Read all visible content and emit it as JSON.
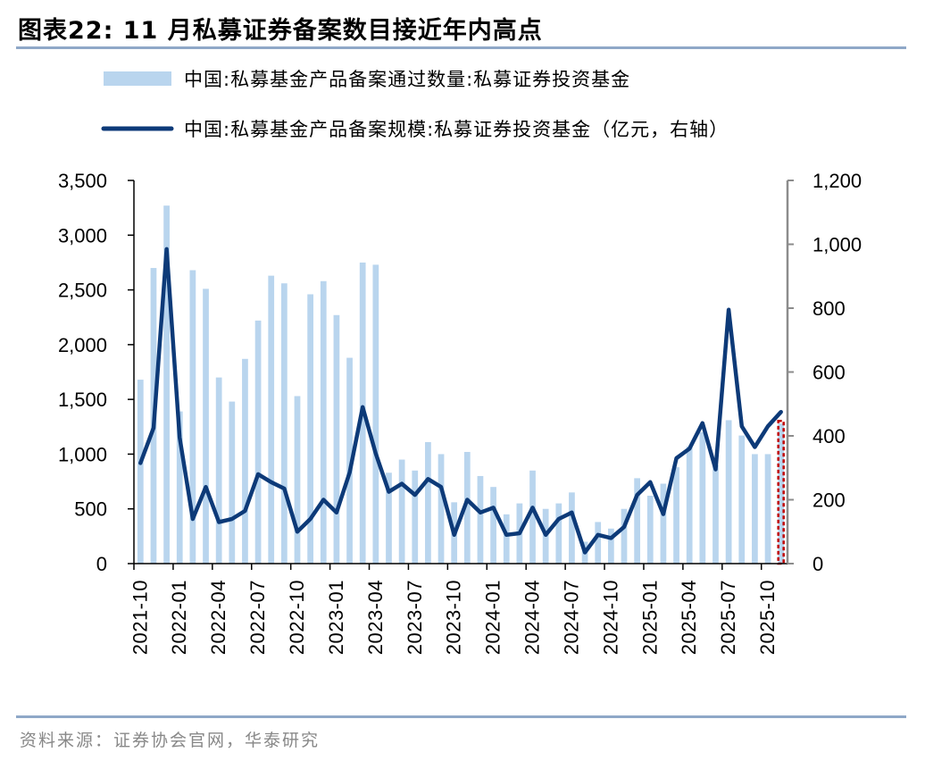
{
  "title": "图表22:  11 月私募证券备案数目接近年内高点",
  "source": "资料来源：证券协会官网，华泰研究",
  "colors": {
    "bar": "#b9d5ee",
    "line": "#0d3a78",
    "axis_right": "#8c8c8c",
    "highlight": "#c00000"
  },
  "chart_data": {
    "type": "bar",
    "title": "",
    "xlabel": "",
    "y_left": {
      "min": 0,
      "max": 3500,
      "ticks": [
        0,
        500,
        1000,
        1500,
        2000,
        2500,
        3000,
        3500
      ]
    },
    "y_right": {
      "min": 0,
      "max": 1200,
      "ticks": [
        0,
        200,
        400,
        600,
        800,
        1000,
        1200
      ]
    },
    "legend_position": "top",
    "x": [
      "2021-10",
      "2021-11",
      "2021-12",
      "2022-01",
      "2022-02",
      "2022-03",
      "2022-04",
      "2022-05",
      "2022-06",
      "2022-07",
      "2022-08",
      "2022-09",
      "2022-10",
      "2022-11",
      "2022-12",
      "2023-01",
      "2023-02",
      "2023-03",
      "2023-04",
      "2023-05",
      "2023-06",
      "2023-07",
      "2023-08",
      "2023-09",
      "2023-10",
      "2023-11",
      "2023-12",
      "2024-01",
      "2024-02",
      "2024-03",
      "2024-04",
      "2024-05",
      "2024-06",
      "2024-07",
      "2024-08",
      "2024-09",
      "2024-10",
      "2024-11",
      "2024-12",
      "2025-01",
      "2025-02",
      "2025-03",
      "2025-04",
      "2025-05",
      "2025-06",
      "2025-07",
      "2025-08",
      "2025-09",
      "2025-10",
      "2025-11"
    ],
    "x_tick_labels": [
      "2021-10",
      "2022-01",
      "2022-04",
      "2022-07",
      "2022-10",
      "2023-01",
      "2023-04",
      "2023-07",
      "2023-10",
      "2024-01",
      "2024-04",
      "2024-07",
      "2024-10",
      "2025-01",
      "2025-04",
      "2025-07",
      "2025-10"
    ],
    "series": [
      {
        "name": "中国:私募基金产品备案通过数量:私募证券投资基金",
        "type": "bar",
        "axis": "left",
        "values": [
          1680,
          2700,
          3270,
          1390,
          2680,
          2510,
          1700,
          1480,
          1870,
          2220,
          2630,
          2560,
          1530,
          2460,
          2580,
          2270,
          1880,
          2750,
          2730,
          830,
          950,
          850,
          1110,
          1000,
          560,
          1020,
          800,
          700,
          450,
          550,
          850,
          500,
          550,
          650,
          200,
          380,
          320,
          500,
          780,
          620,
          730,
          880,
          1070,
          1200,
          900,
          1310,
          1170,
          1000,
          1000,
          1280
        ]
      },
      {
        "name": "中国:私募基金产品备案规模:私募证券投资基金（亿元，右轴）",
        "type": "line",
        "axis": "right",
        "values": [
          315,
          425,
          985,
          395,
          140,
          240,
          130,
          140,
          165,
          280,
          255,
          235,
          100,
          140,
          200,
          160,
          285,
          490,
          345,
          225,
          250,
          215,
          265,
          240,
          90,
          200,
          160,
          175,
          90,
          95,
          175,
          90,
          140,
          160,
          35,
          90,
          80,
          115,
          215,
          255,
          155,
          330,
          360,
          440,
          295,
          795,
          430,
          365,
          430,
          475
        ]
      }
    ]
  }
}
